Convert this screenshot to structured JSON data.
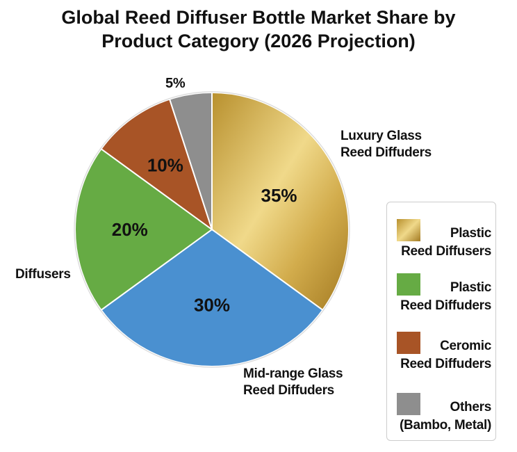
{
  "chart_data": {
    "type": "pie",
    "title_lines": [
      "Global Reed Diffuser Bottle Market Share by",
      "Product Category (2026 Projection)"
    ],
    "slices": [
      {
        "label": "Luxury Glass Reed Diffuders",
        "label_lines": [
          "Luxury Glass",
          "Reed Diffuders"
        ],
        "value": 35,
        "value_label": "35%",
        "color": "#d4af4a"
      },
      {
        "label": "Mid-range Glass Reed Diffuders",
        "label_lines": [
          "Mid-range Glass",
          "Reed Diffuders"
        ],
        "value": 30,
        "value_label": "30%",
        "color": "#4a90d0"
      },
      {
        "label": "Diffusers",
        "label_lines": [
          "Diffusers"
        ],
        "value": 20,
        "value_label": "20%",
        "color": "#66ab44"
      },
      {
        "label": "",
        "label_lines": [],
        "value": 10,
        "value_label": "10%",
        "color": "#a85426"
      },
      {
        "label": "",
        "label_lines": [],
        "value": 5,
        "value_label": "5%",
        "color": "#8e8e8e"
      }
    ],
    "start_angle": "12 o'clock",
    "direction": "clockwise",
    "legend_position": "right",
    "legend": [
      {
        "lines": [
          "Plastic",
          "Reed Diffusers"
        ],
        "color": "gold-gradient"
      },
      {
        "lines": [
          "Plastic",
          "Reed Diffuders"
        ],
        "color": "#66ab44"
      },
      {
        "lines": [
          "Ceromic",
          "Reed Diffuders"
        ],
        "color": "#a85426"
      },
      {
        "lines": [
          "Others",
          "(Bambo, Metal)"
        ],
        "color": "#8e8e8e"
      }
    ]
  }
}
